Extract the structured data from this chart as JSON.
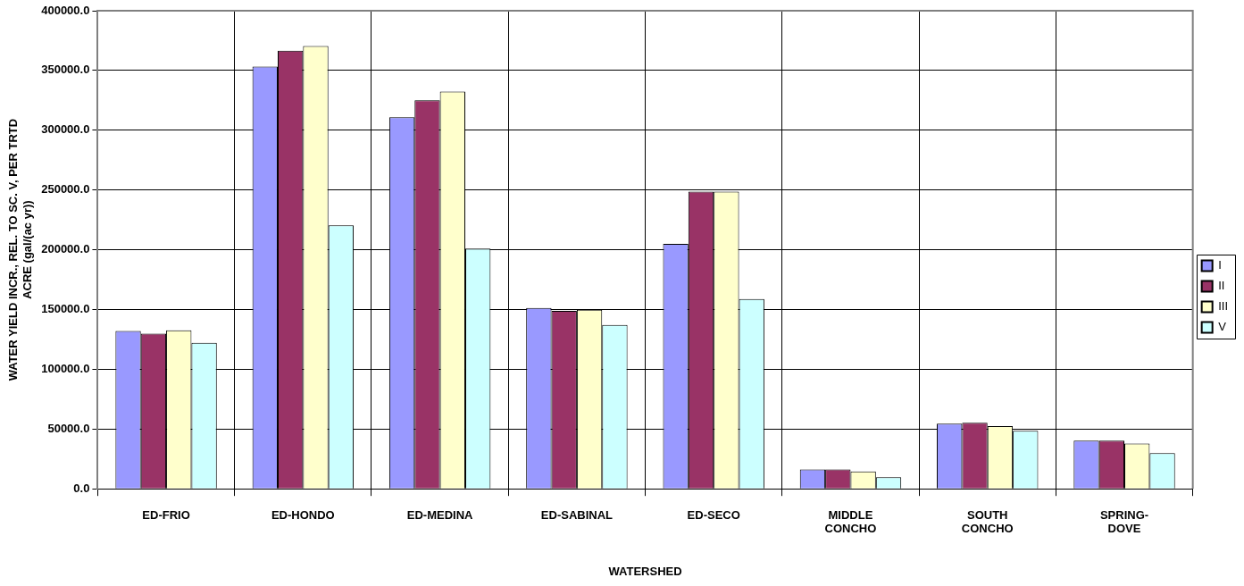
{
  "chart_data": {
    "type": "bar",
    "xlabel": "WATERSHED",
    "ylabel": "WATER YIELD INCR., REL. TO SC. V, PER TRTD ACRE (gal/(ac yr))",
    "categories": [
      "ED-FRIO",
      "ED-HONDO",
      "ED-MEDINA",
      "ED-SABINAL",
      "ED-SECO",
      "MIDDLE CONCHO",
      "SOUTH CONCHO",
      "SPRING-DOVE"
    ],
    "series": [
      {
        "name": "I",
        "color": "#9999ff",
        "values": [
          132000,
          353300,
          310800,
          151400,
          205000,
          16200,
          54600,
          40400
        ]
      },
      {
        "name": "II",
        "color": "#993366",
        "values": [
          129800,
          366600,
          325000,
          148900,
          248600,
          16200,
          55300,
          40400
        ]
      },
      {
        "name": "III",
        "color": "#ffffcc",
        "values": [
          132600,
          370400,
          332300,
          149900,
          248600,
          14500,
          52500,
          37800
        ]
      },
      {
        "name": "V",
        "color": "#ccffff",
        "values": [
          122200,
          220500,
          201100,
          137200,
          158700,
          9600,
          48500,
          29900
        ]
      }
    ],
    "ylim": [
      0,
      400000
    ],
    "yticks": [
      {
        "value": 0,
        "label": "0.0"
      },
      {
        "value": 50000,
        "label": "50000.0"
      },
      {
        "value": 100000,
        "label": "100000.0"
      },
      {
        "value": 150000,
        "label": "150000.0"
      },
      {
        "value": 200000,
        "label": "200000.0"
      },
      {
        "value": 250000,
        "label": "250000.0"
      },
      {
        "value": 300000,
        "label": "300000.0"
      },
      {
        "value": 350000,
        "label": "350000.0"
      },
      {
        "value": 400000,
        "label": "400000.0"
      }
    ],
    "grid": true,
    "legend": "right"
  }
}
